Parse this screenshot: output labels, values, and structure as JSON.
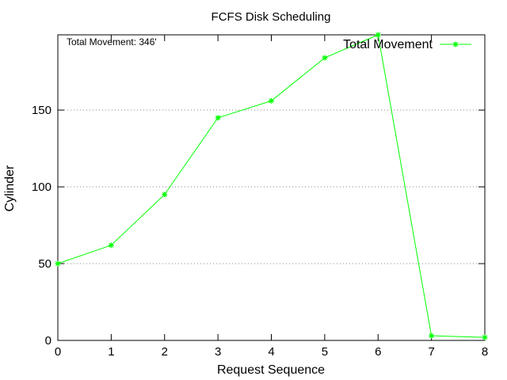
{
  "chart_data": {
    "type": "line",
    "title": "FCFS Disk Scheduling",
    "xlabel": "Request Sequence",
    "ylabel": "Cylinder",
    "xlim": [
      0,
      8
    ],
    "ylim": [
      0,
      199
    ],
    "x_ticks": [
      0,
      1,
      2,
      3,
      4,
      5,
      6,
      7,
      8
    ],
    "y_ticks": [
      0,
      50,
      100,
      150
    ],
    "grid": "horizontal-dotted",
    "legend_position": "top-right",
    "annotation": "Total Movement: 346'",
    "series": [
      {
        "name": "Total Movement",
        "color": "#00ff00",
        "marker": "star",
        "x": [
          0,
          1,
          2,
          3,
          4,
          5,
          6,
          7,
          8
        ],
        "y": [
          50,
          62,
          95,
          145,
          156,
          184,
          199,
          3,
          2
        ]
      }
    ]
  }
}
